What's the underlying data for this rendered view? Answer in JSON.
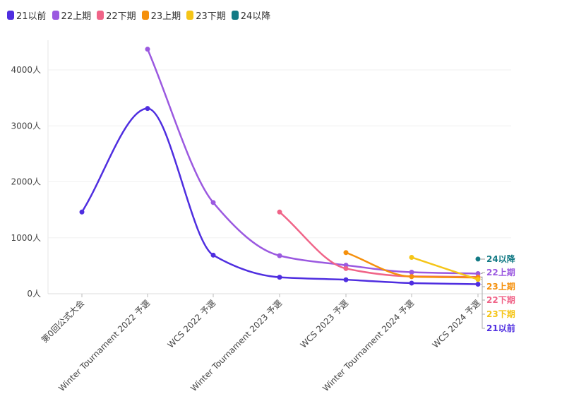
{
  "chart_data": {
    "type": "line",
    "categories": [
      "第0回公式大会",
      "Winter Tournament 2022 予選",
      "WCS 2022 予選",
      "Winter Tournament 2023 予選",
      "WCS 2023 予選",
      "Winter Tournament 2024 予選",
      "WCS 2024 予選"
    ],
    "y_ticks": [
      "0人",
      "1000人",
      "2000人",
      "3000人",
      "4000人"
    ],
    "ylim": [
      0,
      4500
    ],
    "series": [
      {
        "name": "21以前",
        "color": "#4f2ee0",
        "values": [
          1460,
          3310,
          690,
          295,
          250,
          190,
          170
        ],
        "end_label": "21以前"
      },
      {
        "name": "22上期",
        "color": "#9b59e0",
        "values": [
          null,
          4370,
          1630,
          680,
          510,
          385,
          360
        ],
        "end_label": "22上期"
      },
      {
        "name": "22下期",
        "color": "#f06488",
        "values": [
          null,
          null,
          null,
          1460,
          450,
          310,
          300
        ],
        "end_label": "22下期"
      },
      {
        "name": "23上期",
        "color": "#f5900c",
        "values": [
          null,
          null,
          null,
          null,
          735,
          305,
          290
        ],
        "end_label": "23上期"
      },
      {
        "name": "23下期",
        "color": "#f5c518",
        "values": [
          null,
          null,
          null,
          null,
          null,
          650,
          255
        ],
        "end_label": "23下期"
      },
      {
        "name": "24以降",
        "color": "#137a85",
        "values": [
          null,
          null,
          null,
          null,
          null,
          null,
          620
        ],
        "end_label": "24以降"
      }
    ],
    "grid": true,
    "legend": "top-left"
  }
}
